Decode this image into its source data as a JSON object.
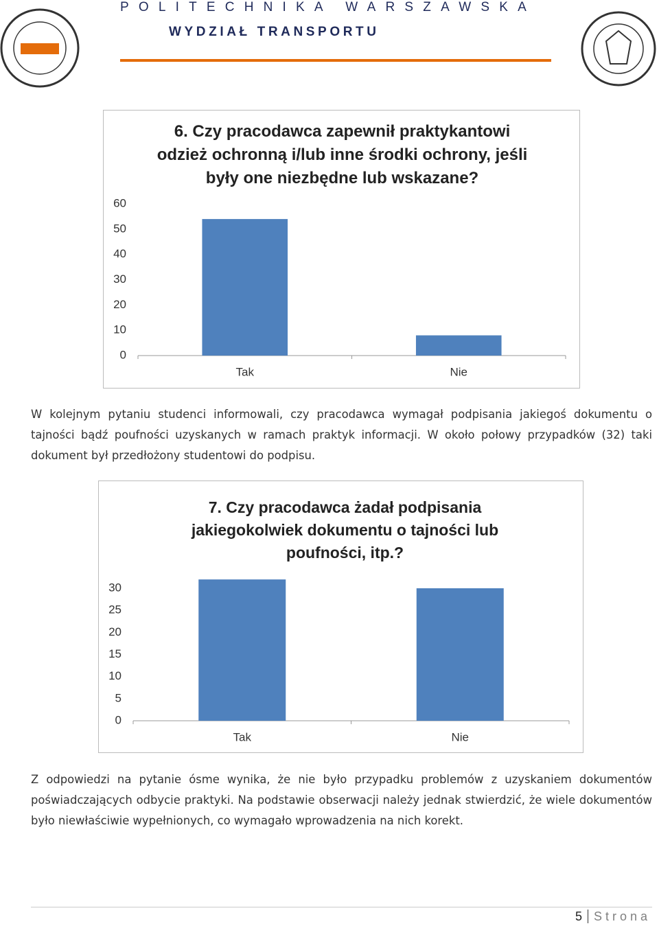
{
  "header": {
    "university": "POLITECHNIKA WARSZAWSKA",
    "faculty": "WYDZIAŁ TRANSPORTU"
  },
  "chart_data": [
    {
      "type": "bar",
      "title": "6. Czy pracodawca zapewnił praktykantowi odzież ochronną i/lub inne środki ochrony, jeśli były one niezbędne lub wskazane?",
      "categories": [
        "Tak",
        "Nie"
      ],
      "values": [
        54,
        8
      ],
      "color": "#4f81bd",
      "ylim": [
        0,
        60
      ],
      "yticks": [
        0,
        10,
        20,
        30,
        40,
        50,
        60
      ],
      "grid": false
    },
    {
      "type": "bar",
      "title": "7. Czy pracodawca żadał podpisania jakiegokolwiek dokumentu o tajności lub poufności, itp.?",
      "categories": [
        "Tak",
        "Nie"
      ],
      "values": [
        32,
        30
      ],
      "color": "#4f81bd",
      "ylim": [
        0,
        30
      ],
      "yticks": [
        0,
        5,
        10,
        15,
        20,
        25,
        30
      ],
      "grid": false
    }
  ],
  "paragraphs": [
    "W kolejnym pytaniu studenci informowali, czy pracodawca wymagał podpisania jakiegoś dokumentu o tajności bądź poufności uzyskanych w ramach praktyk informacji. W około połowy przypadków (32) taki dokument był przedłożony studentowi do podpisu.",
    "Z odpowiedzi na pytanie ósme wynika, że nie było przypadku problemów z uzyskaniem dokumentów poświadczających odbycie praktyki. Na podstawie obserwacji należy jednak stwierdzić, że wiele dokumentów było niewłaściwie wypełnionych, co wymagało wprowadzenia na nich korekt."
  ],
  "footer": {
    "page": 5,
    "label": "Strona"
  }
}
